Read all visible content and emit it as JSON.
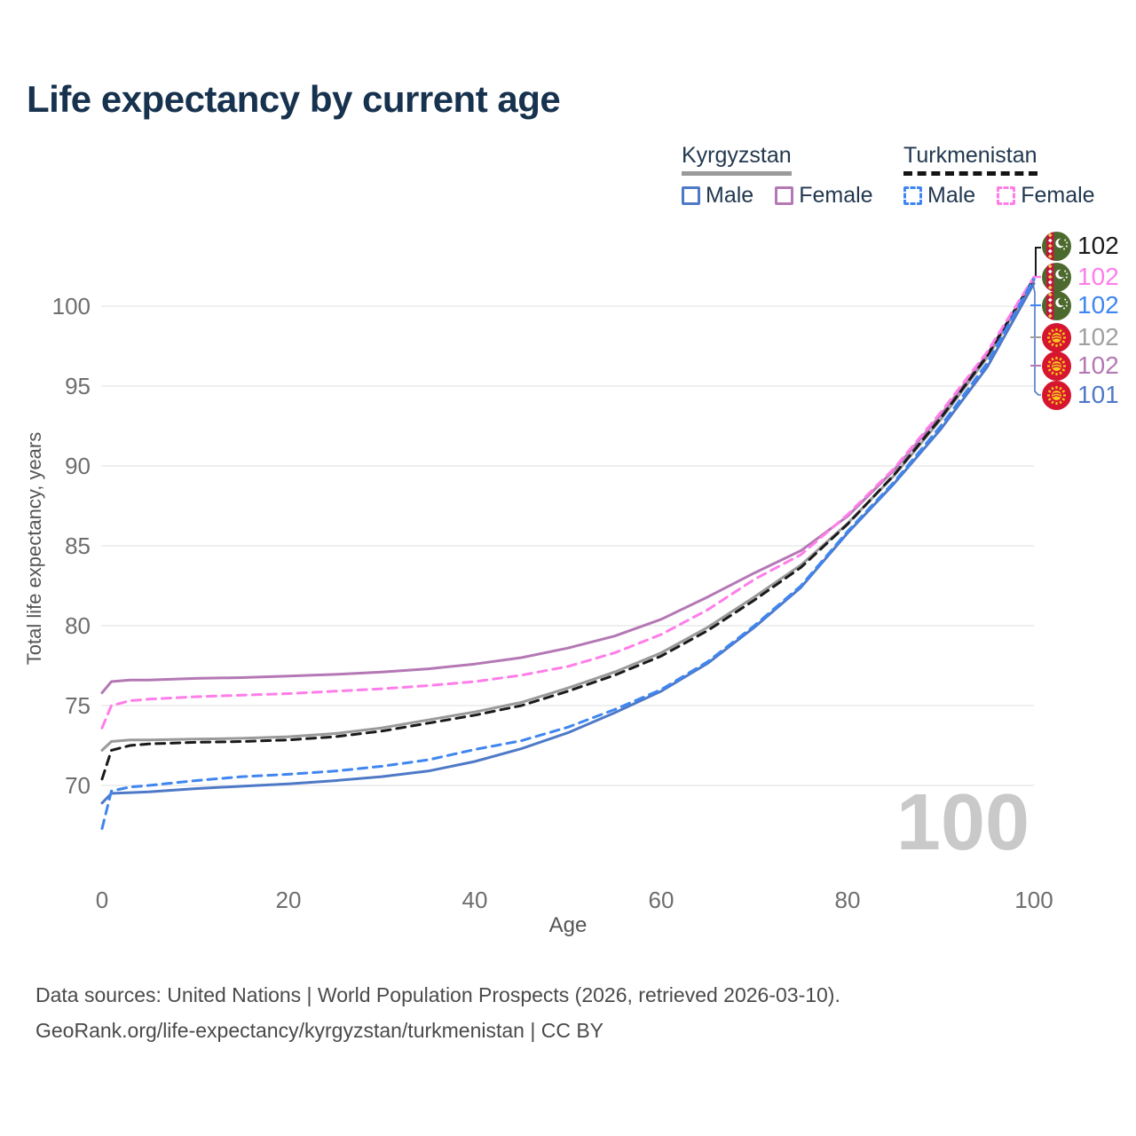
{
  "title": "Life expectancy by current age",
  "legend": {
    "groups": [
      {
        "label": "Kyrgyzstan",
        "line_style": "solid",
        "items": [
          {
            "label": "Male",
            "color": "#4e79c7"
          },
          {
            "label": "Female",
            "color": "#b478b4"
          }
        ]
      },
      {
        "label": "Turkmenistan",
        "line_style": "dashed",
        "items": [
          {
            "label": "Male",
            "color": "#3f86f0"
          },
          {
            "label": "Female",
            "color": "#ff7de9"
          }
        ]
      }
    ]
  },
  "chart_data": {
    "type": "line",
    "xlabel": "Age",
    "ylabel": "Total life expectancy, years",
    "x_ticks": [
      0,
      20,
      40,
      60,
      80,
      100
    ],
    "y_ticks": [
      100,
      95,
      90,
      85,
      80,
      75,
      70
    ],
    "xlim": [
      0,
      100
    ],
    "ylim": [
      67,
      103
    ],
    "grid": true,
    "watermark": "100",
    "series": [
      {
        "name": "Kyrgyzstan Total",
        "key": "kg_total",
        "color": "#9a9a9a",
        "dash": false,
        "width": 3,
        "points": [
          [
            0,
            72.2
          ],
          [
            1,
            72.75
          ],
          [
            3,
            72.85
          ],
          [
            5,
            72.85
          ],
          [
            10,
            72.9
          ],
          [
            15,
            72.95
          ],
          [
            20,
            73.05
          ],
          [
            25,
            73.25
          ],
          [
            30,
            73.6
          ],
          [
            35,
            74.1
          ],
          [
            40,
            74.6
          ],
          [
            45,
            75.2
          ],
          [
            50,
            76.1
          ],
          [
            55,
            77.1
          ],
          [
            60,
            78.3
          ],
          [
            65,
            79.9
          ],
          [
            70,
            81.8
          ],
          [
            75,
            83.8
          ],
          [
            80,
            86.4
          ],
          [
            85,
            89.4
          ],
          [
            90,
            92.9
          ],
          [
            95,
            96.8
          ],
          [
            100,
            101.62
          ]
        ]
      },
      {
        "name": "Kyrgyzstan Female",
        "key": "kg_female",
        "color": "#b478b4",
        "dash": false,
        "width": 3,
        "points": [
          [
            0,
            75.8
          ],
          [
            1,
            76.5
          ],
          [
            3,
            76.6
          ],
          [
            5,
            76.6
          ],
          [
            10,
            76.7
          ],
          [
            15,
            76.75
          ],
          [
            20,
            76.85
          ],
          [
            25,
            76.95
          ],
          [
            30,
            77.1
          ],
          [
            35,
            77.3
          ],
          [
            40,
            77.6
          ],
          [
            45,
            78.0
          ],
          [
            50,
            78.6
          ],
          [
            55,
            79.35
          ],
          [
            60,
            80.4
          ],
          [
            65,
            81.8
          ],
          [
            70,
            83.3
          ],
          [
            75,
            84.7
          ],
          [
            80,
            86.85
          ],
          [
            85,
            89.75
          ],
          [
            90,
            93.2
          ],
          [
            95,
            97.0
          ],
          [
            100,
            101.66
          ]
        ]
      },
      {
        "name": "Kyrgyzstan Male",
        "key": "kg_male",
        "color": "#4e79c7",
        "dash": false,
        "width": 3,
        "points": [
          [
            0,
            68.9
          ],
          [
            1,
            69.5
          ],
          [
            3,
            69.55
          ],
          [
            5,
            69.6
          ],
          [
            10,
            69.8
          ],
          [
            15,
            69.95
          ],
          [
            20,
            70.1
          ],
          [
            25,
            70.3
          ],
          [
            30,
            70.55
          ],
          [
            35,
            70.9
          ],
          [
            40,
            71.5
          ],
          [
            45,
            72.3
          ],
          [
            50,
            73.3
          ],
          [
            55,
            74.55
          ],
          [
            60,
            75.9
          ],
          [
            65,
            77.65
          ],
          [
            70,
            79.9
          ],
          [
            75,
            82.4
          ],
          [
            80,
            85.8
          ],
          [
            85,
            88.9
          ],
          [
            90,
            92.3
          ],
          [
            95,
            96.2
          ],
          [
            100,
            101.42
          ]
        ]
      },
      {
        "name": "Turkmenistan Total",
        "key": "tm_total",
        "color": "#1a1a1a",
        "dash": true,
        "width": 3,
        "points": [
          [
            0,
            70.4
          ],
          [
            1,
            72.2
          ],
          [
            3,
            72.5
          ],
          [
            5,
            72.6
          ],
          [
            10,
            72.7
          ],
          [
            15,
            72.75
          ],
          [
            20,
            72.85
          ],
          [
            25,
            73.05
          ],
          [
            30,
            73.4
          ],
          [
            35,
            73.9
          ],
          [
            40,
            74.4
          ],
          [
            45,
            75.0
          ],
          [
            50,
            75.9
          ],
          [
            55,
            76.9
          ],
          [
            60,
            78.1
          ],
          [
            65,
            79.7
          ],
          [
            70,
            81.6
          ],
          [
            75,
            83.65
          ],
          [
            80,
            86.35
          ],
          [
            85,
            89.45
          ],
          [
            90,
            93.0
          ],
          [
            95,
            96.9
          ],
          [
            100,
            101.75
          ]
        ]
      },
      {
        "name": "Turkmenistan Female",
        "key": "tm_female",
        "color": "#ff7de9",
        "dash": true,
        "width": 3,
        "points": [
          [
            0,
            73.6
          ],
          [
            1,
            75.0
          ],
          [
            3,
            75.3
          ],
          [
            5,
            75.4
          ],
          [
            10,
            75.55
          ],
          [
            15,
            75.65
          ],
          [
            20,
            75.75
          ],
          [
            25,
            75.9
          ],
          [
            30,
            76.05
          ],
          [
            35,
            76.25
          ],
          [
            40,
            76.5
          ],
          [
            45,
            76.9
          ],
          [
            50,
            77.45
          ],
          [
            55,
            78.3
          ],
          [
            60,
            79.45
          ],
          [
            65,
            81.0
          ],
          [
            70,
            82.9
          ],
          [
            75,
            84.45
          ],
          [
            80,
            86.95
          ],
          [
            85,
            89.85
          ],
          [
            90,
            93.35
          ],
          [
            95,
            97.15
          ],
          [
            100,
            101.82
          ]
        ]
      },
      {
        "name": "Turkmenistan Male",
        "key": "tm_male",
        "color": "#3f86f0",
        "dash": true,
        "width": 3,
        "points": [
          [
            0,
            67.3
          ],
          [
            1,
            69.65
          ],
          [
            3,
            69.9
          ],
          [
            5,
            70.0
          ],
          [
            10,
            70.3
          ],
          [
            15,
            70.55
          ],
          [
            20,
            70.7
          ],
          [
            25,
            70.9
          ],
          [
            30,
            71.2
          ],
          [
            35,
            71.6
          ],
          [
            40,
            72.25
          ],
          [
            45,
            72.8
          ],
          [
            50,
            73.65
          ],
          [
            55,
            74.75
          ],
          [
            60,
            76.0
          ],
          [
            65,
            77.75
          ],
          [
            70,
            80.0
          ],
          [
            75,
            82.5
          ],
          [
            80,
            85.9
          ],
          [
            85,
            89.0
          ],
          [
            90,
            92.5
          ],
          [
            95,
            96.45
          ],
          [
            100,
            101.72
          ]
        ]
      }
    ],
    "end_labels": [
      {
        "value": "102",
        "color": "#1a1a1a",
        "flag": "turkmenistan",
        "series": "Turkmenistan Total"
      },
      {
        "value": "102",
        "color": "#ff7de9",
        "flag": "turkmenistan",
        "series": "Turkmenistan Female"
      },
      {
        "value": "102",
        "color": "#3f86f0",
        "flag": "turkmenistan",
        "series": "Turkmenistan Male"
      },
      {
        "value": "102",
        "color": "#a0a0a0",
        "flag": "kyrgyzstan",
        "series": "Kyrgyzstan Total"
      },
      {
        "value": "102",
        "color": "#b478b4",
        "flag": "kyrgyzstan",
        "series": "Kyrgyzstan Female"
      },
      {
        "value": "101",
        "color": "#4e79c7",
        "flag": "kyrgyzstan",
        "series": "Kyrgyzstan Male"
      }
    ]
  },
  "colors": {
    "grid": "#eaeaea",
    "axis_text": "#6e6e6e",
    "axis_title": "#555555",
    "watermark": "#c9c9c9"
  },
  "footer": {
    "line1": "Data sources: United Nations | World Population Prospects (2026, retrieved 2026-03-10).",
    "line2": "GeoRank.org/life-expectancy/kyrgyzstan/turkmenistan | CC BY"
  }
}
